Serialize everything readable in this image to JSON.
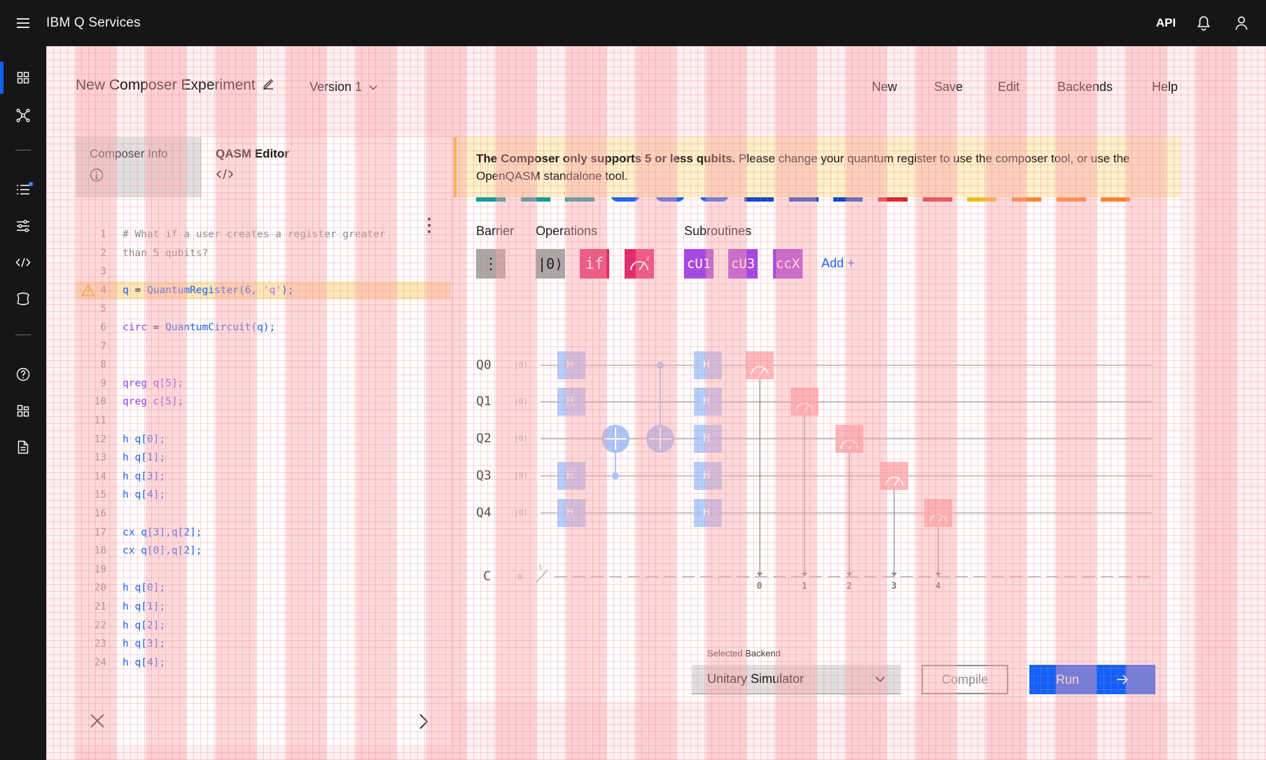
{
  "topbar": {
    "brand": "IBM Q Services",
    "api_label": "API",
    "icons": [
      "hamburger-menu-icon",
      "bell-icon",
      "user-icon"
    ]
  },
  "sidenav": {
    "icons": [
      "dashboard-icon",
      "network-icon",
      "list-icon",
      "settings-sliders-icon",
      "code-icon",
      "quantum-icon",
      "help-icon",
      "apps-icon",
      "document-icon"
    ]
  },
  "header": {
    "title": "New Composer Experiment",
    "version": "Version 1",
    "menu": [
      "New",
      "Save",
      "Edit",
      "Backends",
      "Help"
    ]
  },
  "tabs": {
    "composer_info": "Composer Info",
    "qasm_editor": "QASM Editor"
  },
  "editor": {
    "lines": [
      {
        "n": "1",
        "t": "# What if a user creates a register greater",
        "k": "com"
      },
      {
        "n": "2",
        "t": "than 5 qubits?",
        "k": "com"
      },
      {
        "n": "3",
        "t": "",
        "k": "def"
      },
      {
        "n": "4",
        "t": "q = QuantumRegister(6, 'q');",
        "k": "mix4"
      },
      {
        "n": "5",
        "t": "",
        "k": "def"
      },
      {
        "n": "6",
        "t": "circ = QuantumCircuit(q);",
        "k": "mix6"
      },
      {
        "n": "7",
        "t": "",
        "k": "def"
      },
      {
        "n": "8",
        "t": "",
        "k": "def"
      },
      {
        "n": "9",
        "t": "qreg q[5];",
        "k": "kw"
      },
      {
        "n": "10",
        "t": "qreg c[5];",
        "k": "kw"
      },
      {
        "n": "11",
        "t": "",
        "k": "def"
      },
      {
        "n": "12",
        "t": "h q[0];",
        "k": "fn"
      },
      {
        "n": "13",
        "t": "h q[1];",
        "k": "fn"
      },
      {
        "n": "14",
        "t": "h q[3];",
        "k": "fn"
      },
      {
        "n": "15",
        "t": "h q[4];",
        "k": "fn"
      },
      {
        "n": "16",
        "t": "",
        "k": "def"
      },
      {
        "n": "17",
        "t": "cx q[3],q[2];",
        "k": "fn"
      },
      {
        "n": "18",
        "t": "cx q[0],q[2];",
        "k": "fn"
      },
      {
        "n": "19",
        "t": "",
        "k": "def"
      },
      {
        "n": "20",
        "t": "h q[0];",
        "k": "fn"
      },
      {
        "n": "21",
        "t": "h q[1];",
        "k": "fn"
      },
      {
        "n": "22",
        "t": "h q[2];",
        "k": "fn"
      },
      {
        "n": "23",
        "t": "h q[3];",
        "k": "fn"
      },
      {
        "n": "24",
        "t": "h q[4];",
        "k": "fn"
      }
    ],
    "highlight_line": "4"
  },
  "notification": {
    "bold": "The Composer only supports 5 or less qubits.",
    "text": " Please change your quantum register to use the composer tool, or use the OpenQASM standalone tool."
  },
  "palette": {
    "categories": [
      "Barrier",
      "Operations",
      "Subroutines"
    ],
    "gates": [
      {
        "label": "⋮",
        "color": "#a8a8a8",
        "name": "barrier-gate"
      },
      {
        "label": "|0⟩",
        "color": "#a8a8a8",
        "name": "reset-gate"
      },
      {
        "label": "if",
        "color": "#da1e28",
        "name": "if-gate"
      },
      {
        "label": "",
        "color": "#da1e28",
        "name": "measure-gate"
      },
      {
        "label": "cU1",
        "color": "#8a3ffc",
        "name": "cu1-gate"
      },
      {
        "label": "cU3",
        "color": "#8a3ffc",
        "name": "cu3-gate"
      },
      {
        "label": "ccX",
        "color": "#8a3ffc",
        "name": "ccx-gate"
      }
    ],
    "add_label": "Add +"
  },
  "circuit": {
    "qubits": [
      "Q0",
      "Q1",
      "Q2",
      "Q3",
      "Q4"
    ],
    "classical": "C",
    "ket": "|0⟩",
    "c_init": "0",
    "c_size": "5",
    "gate_h": "H",
    "measure_indices": [
      "0",
      "1",
      "2",
      "3",
      "4"
    ]
  },
  "backend": {
    "label": "Selected Backend",
    "value": "Unitary Simulator",
    "compile": "Compile",
    "run": "Run"
  }
}
